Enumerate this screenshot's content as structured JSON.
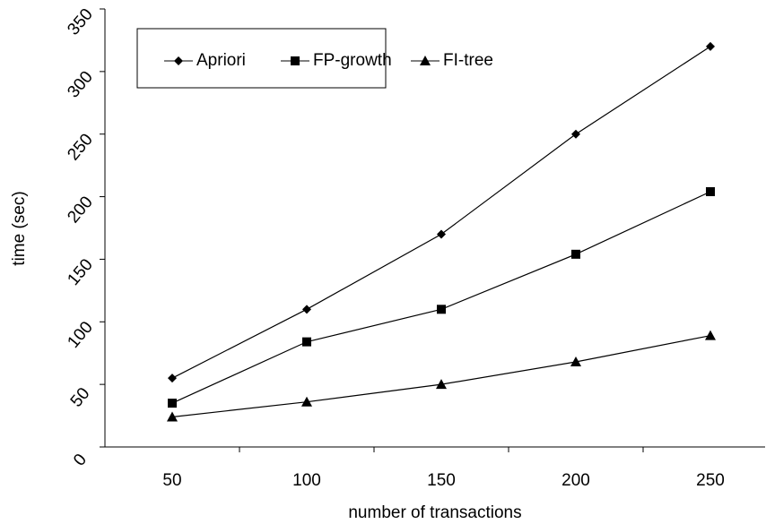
{
  "chart_data": {
    "type": "line",
    "x_label": "number of transactions",
    "y_label": "time (sec)",
    "categories": [
      "50",
      "100",
      "150",
      "200",
      "250"
    ],
    "series": [
      {
        "name": "Apriori",
        "color": "#000000",
        "marker": "diamond",
        "values": [
          55,
          110,
          170,
          250,
          320
        ]
      },
      {
        "name": "FP-growth",
        "color": "#000000",
        "marker": "square",
        "values": [
          35,
          84,
          110,
          154,
          204
        ]
      },
      {
        "name": "FI-tree",
        "color": "#000000",
        "marker": "triangle",
        "values": [
          24,
          36,
          50,
          68,
          89
        ]
      }
    ],
    "ylim": [
      0,
      350
    ],
    "yticks": [
      0,
      50,
      100,
      150,
      200,
      250,
      300,
      350
    ],
    "grid": false,
    "legend": "top-left"
  }
}
